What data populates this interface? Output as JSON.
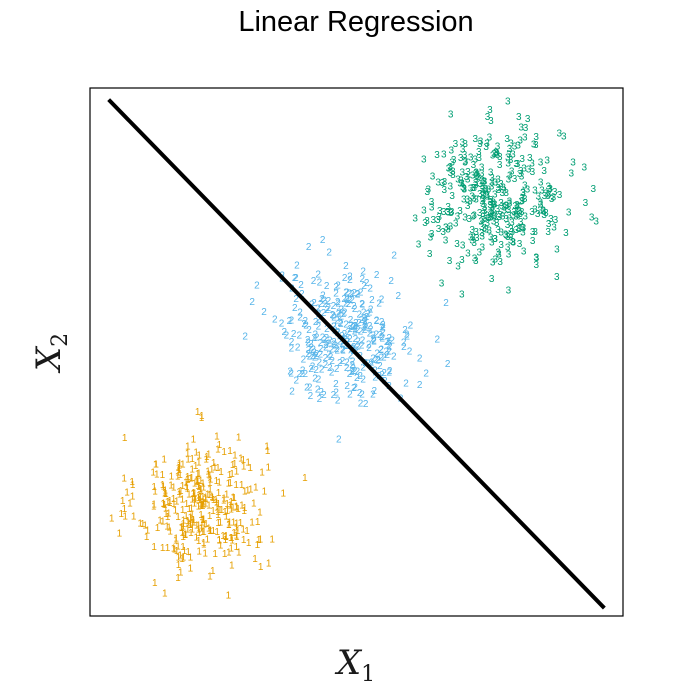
{
  "chart_data": {
    "type": "scatter",
    "title": "Linear Regression",
    "xlabel": {
      "symbol": "X",
      "subscript": "1"
    },
    "ylabel": {
      "symbol": "X",
      "subscript": "2"
    },
    "xlim": [
      0,
      1
    ],
    "ylim": [
      0,
      1
    ],
    "axes_ticks": false,
    "grid": false,
    "legend": "none",
    "marker_style": "class digit",
    "series": [
      {
        "name": "1",
        "color": "#E69F00",
        "cluster": {
          "center": [
            0.21,
            0.21
          ],
          "spread": [
            0.06,
            0.065
          ],
          "count": 340
        }
      },
      {
        "name": "2",
        "color": "#56B4E9",
        "cluster": {
          "center": [
            0.48,
            0.53
          ],
          "spread": [
            0.065,
            0.06
          ],
          "count": 330
        }
      },
      {
        "name": "3",
        "color": "#009E73",
        "cluster": {
          "center": [
            0.76,
            0.79
          ],
          "spread": [
            0.065,
            0.065
          ],
          "count": 360
        }
      }
    ],
    "regression_line": {
      "points": [
        [
          0.035,
          0.978
        ],
        [
          0.965,
          0.015
        ]
      ],
      "color": "#000000"
    }
  }
}
